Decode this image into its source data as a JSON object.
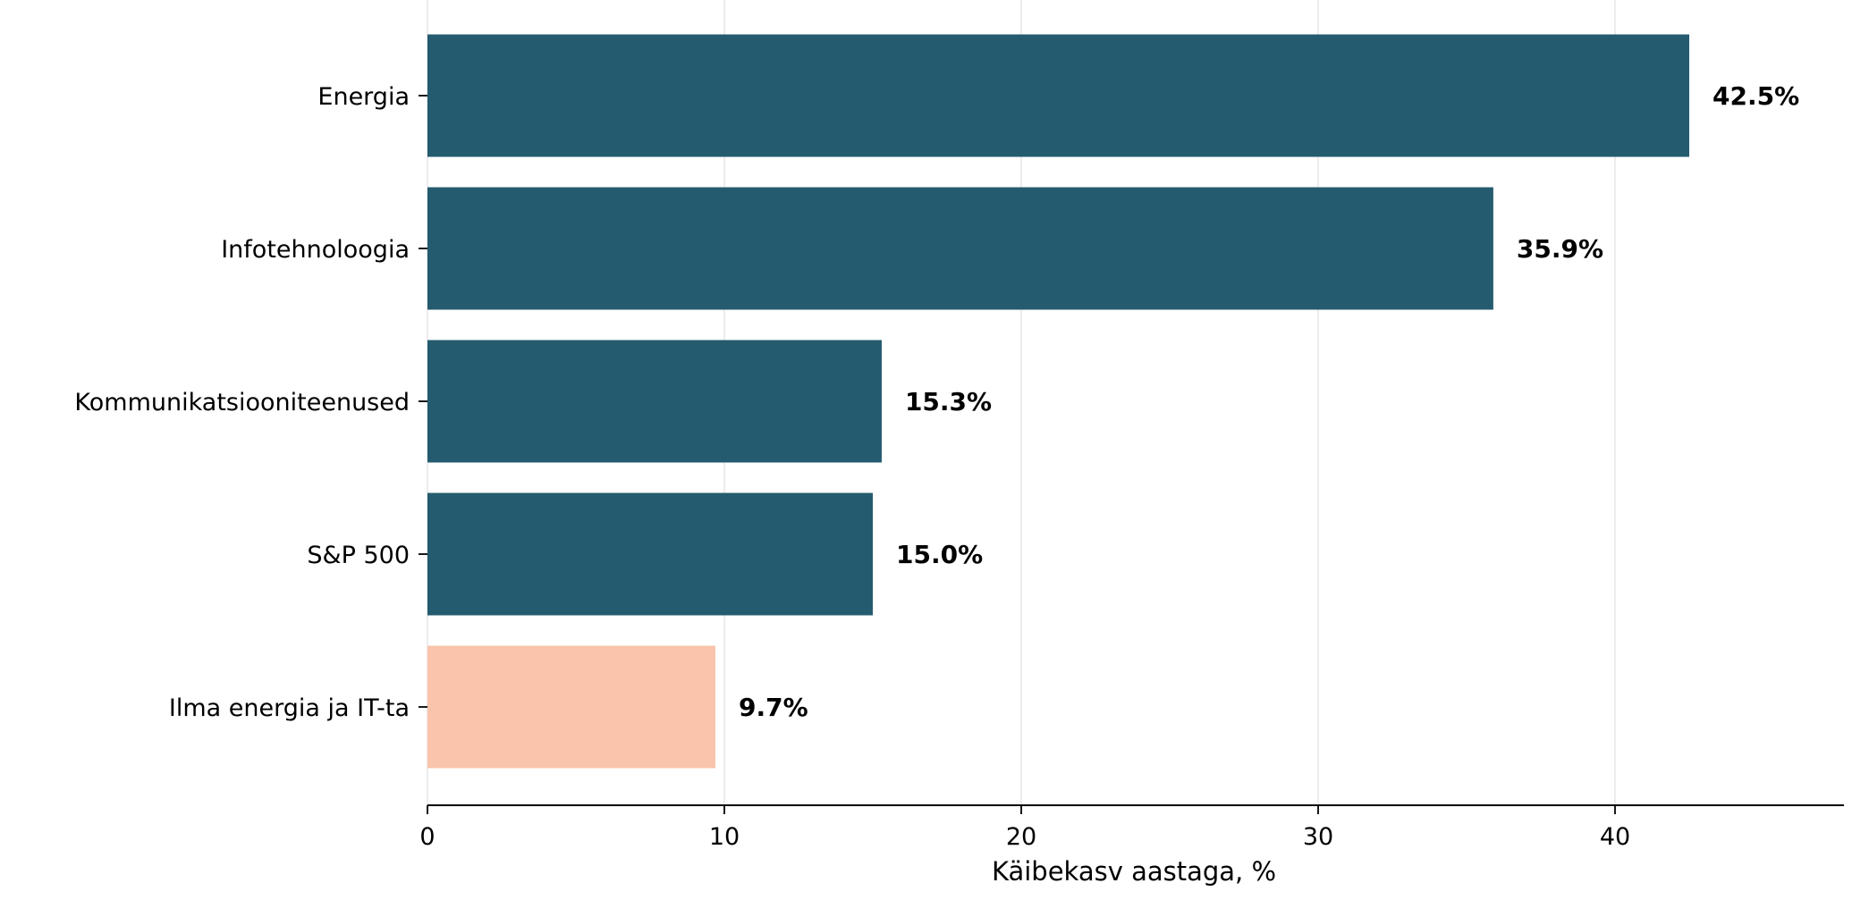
{
  "chart_data": {
    "type": "bar",
    "orientation": "horizontal",
    "title": "",
    "xlabel": "Käibekasv aastaga, %",
    "ylabel": "",
    "categories": [
      "Energia",
      "Infotehnoloogia",
      "Kommunikatsiooniteenused",
      "S&P 500",
      "Ilma energia ja IT-ta"
    ],
    "values": [
      42.5,
      35.9,
      15.3,
      15.0,
      9.7
    ],
    "data_labels": [
      "42.5%",
      "35.9%",
      "15.3%",
      "15.0%",
      "9.7%"
    ],
    "bar_colors": [
      "#255b6e",
      "#255b6e",
      "#255b6e",
      "#255b6e",
      "#f9c4ab"
    ],
    "xlim": [
      0,
      48
    ],
    "xticks": [
      0,
      10,
      20,
      30,
      40
    ],
    "xtick_labels": [
      "0",
      "10",
      "20",
      "30",
      "40"
    ],
    "grid": "vertical",
    "legend": "none"
  }
}
